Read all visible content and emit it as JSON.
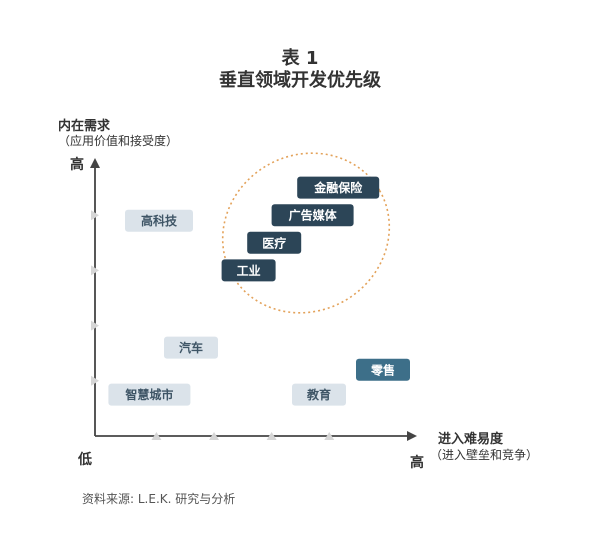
{
  "title_line1": "表 1",
  "title_line2": "垂直领域开发优先级",
  "y_axis_label": "内在需求",
  "y_axis_sublabel": "（应用价值和接受度）",
  "x_axis_label": "进入难易度",
  "x_axis_sublabel": "（进入壁垒和竞争）",
  "y_high_label": "高",
  "x_low_label": "低",
  "x_high_label": "高",
  "source": "资料来源: L.E.K. 研究与分析",
  "colors": {
    "light_box": "#dbe3ea",
    "dark_box": "#2c4557",
    "highlight_box": "#3d6f89",
    "ellipse": "#e3a25a",
    "axis": "#444444"
  },
  "chart_data": {
    "type": "scatter",
    "title": "垂直领域开发优先级",
    "xlabel": "进入难易度（进入壁垒和竞争）",
    "ylabel": "内在需求（应用价值和接受度）",
    "xlim": [
      0,
      5
    ],
    "ylim": [
      0,
      5
    ],
    "x_ticks": [
      1,
      2,
      3,
      4
    ],
    "y_ticks": [
      1,
      2,
      3,
      4
    ],
    "highlight": [
      "金融保险",
      "广告媒体",
      "医疗",
      "工业"
    ],
    "points": [
      {
        "label": "高科技",
        "x": 1.0,
        "y": 3.9,
        "style": "light"
      },
      {
        "label": "汽车",
        "x": 1.5,
        "y": 1.6,
        "style": "light"
      },
      {
        "label": "智慧城市",
        "x": 0.85,
        "y": 0.75,
        "style": "light"
      },
      {
        "label": "教育",
        "x": 3.5,
        "y": 0.75,
        "style": "light"
      },
      {
        "label": "零售",
        "x": 4.5,
        "y": 1.2,
        "style": "highlight"
      },
      {
        "label": "金融保险",
        "x": 3.8,
        "y": 4.5,
        "style": "dark"
      },
      {
        "label": "广告媒体",
        "x": 3.4,
        "y": 4.0,
        "style": "dark"
      },
      {
        "label": "医疗",
        "x": 2.8,
        "y": 3.5,
        "style": "dark"
      },
      {
        "label": "工业",
        "x": 2.4,
        "y": 3.0,
        "style": "dark"
      }
    ]
  }
}
